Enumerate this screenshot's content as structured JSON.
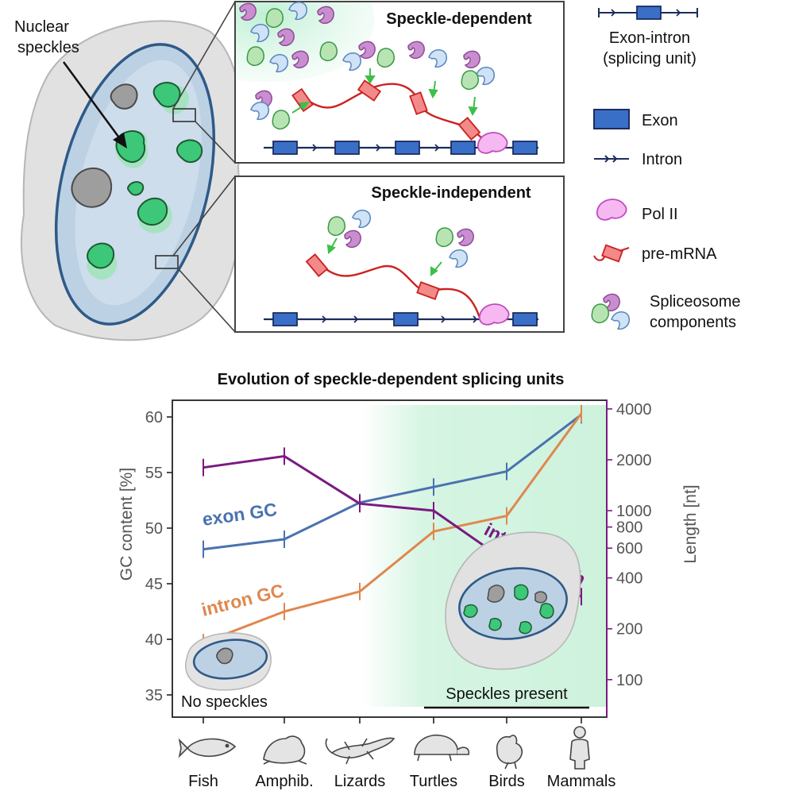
{
  "diagram": {
    "nucleus_label": [
      "Nuclear",
      "speckles"
    ],
    "dependent_title": "Speckle-dependent",
    "independent_title": "Speckle-independent"
  },
  "legend": {
    "unit": [
      "Exon-intron",
      "(splicing unit)"
    ],
    "exon": "Exon",
    "intron": "Intron",
    "pol2": "Pol II",
    "premrna": "pre-mRNA",
    "spliceosome": [
      "Spliceosome",
      "components"
    ]
  },
  "colors": {
    "exon": "#3a6fc8",
    "intron": "#1c2c5e",
    "premrna": "#cc2222",
    "pol2": "#f6b8f0",
    "exon_gc": "#4a72b0",
    "intron_gc": "#e0874e",
    "intron_length": "#7a1a82",
    "speckle": "#3cc878",
    "nucleus": "#b9cfe0"
  },
  "chart_data": {
    "type": "line",
    "title": "Evolution of speckle-dependent splicing units",
    "categories": [
      "Fish",
      "Amphib.",
      "Lizards",
      "Turtles",
      "Birds",
      "Mammals"
    ],
    "ylabel": "GC content [%]",
    "ylabel_right": "Length [nt]",
    "ylim": [
      33,
      61.5
    ],
    "yticks": [
      35,
      40,
      45,
      50,
      55,
      60
    ],
    "y2lim": [
      60,
      4500
    ],
    "y2scale": "log",
    "y2ticks": [
      100,
      200,
      400,
      600,
      800,
      1000,
      2000,
      4000
    ],
    "series": [
      {
        "name": "exon GC",
        "axis": "left",
        "values": [
          48.1,
          49.0,
          52.3,
          53.7,
          55.1,
          60.2
        ]
      },
      {
        "name": "intron GC",
        "axis": "left",
        "values": [
          39.7,
          42.5,
          44.3,
          49.7,
          51.1,
          60.3
        ]
      },
      {
        "name": "intron length",
        "axis": "right",
        "values": [
          1800,
          2100,
          1100,
          1000,
          500,
          310
        ]
      }
    ],
    "annotations": {
      "no_speckles": "No speckles",
      "speckles_present": "Speckles present"
    }
  }
}
